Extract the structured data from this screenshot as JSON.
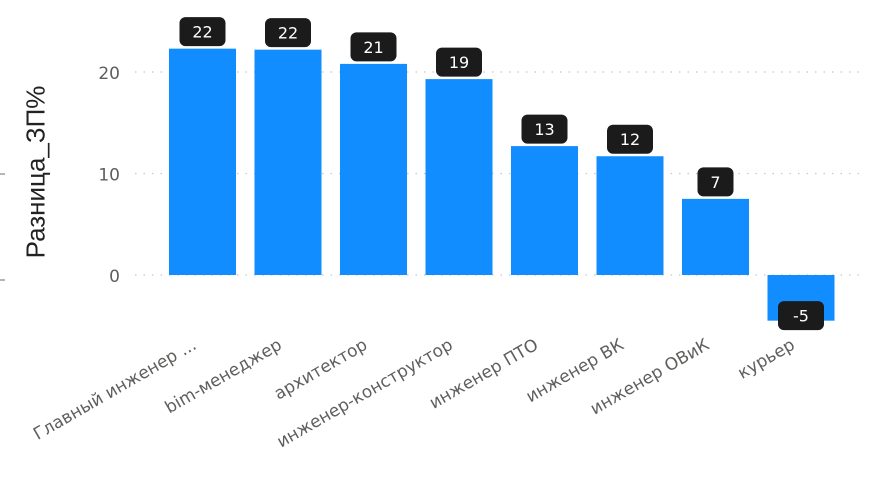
{
  "chart_data": {
    "type": "bar",
    "ylabel": "Разница_ЗП%",
    "xlabel": "",
    "title": "",
    "ylim": [
      -5,
      24
    ],
    "yticks": [
      0,
      10,
      20
    ],
    "grid": true,
    "categories": [
      "Главный инженер ...",
      "bim-менеджер",
      "архитектор",
      "инженер-конструктор",
      "инженер ПТО",
      "инженер ВК",
      "инженер ОВиК",
      "курьер"
    ],
    "values": [
      22.3,
      22.2,
      20.8,
      19.3,
      12.7,
      11.7,
      7.5,
      -4.5
    ],
    "data_labels": [
      "22",
      "22",
      "21",
      "19",
      "13",
      "12",
      "7",
      "-5"
    ],
    "colors": {
      "bar": "#118DFF",
      "label_bg": "#1B1B1B",
      "label_text": "#FFFFFF",
      "grid": "#C8C8C8",
      "tick_text": "#605E5C",
      "category_text": "#605E5C"
    }
  }
}
